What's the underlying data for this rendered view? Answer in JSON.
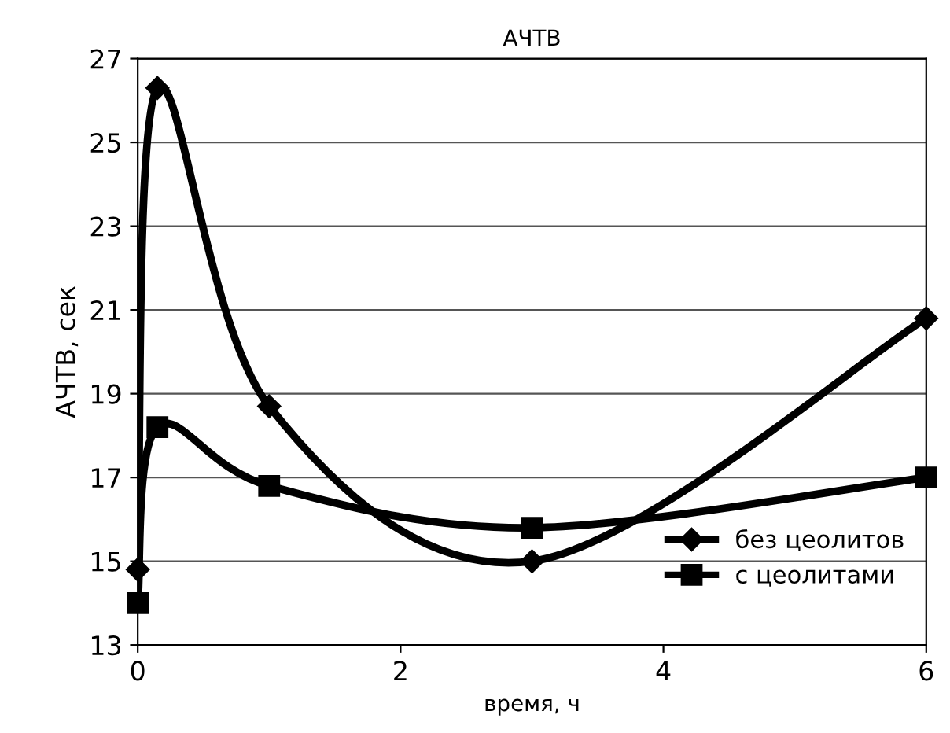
{
  "chart_data": {
    "type": "line",
    "title": "АЧТВ",
    "xlabel": "время, ч",
    "ylabel": "АЧТВ, сек",
    "xlim": [
      0,
      6
    ],
    "xticks": [
      0,
      2,
      4,
      6
    ],
    "ylim": [
      13,
      27
    ],
    "yticks": [
      13,
      15,
      17,
      19,
      21,
      23,
      25,
      27
    ],
    "grid": "y",
    "legend": "bottom right",
    "line_style": "solid",
    "series": [
      {
        "name": "без цеолитов",
        "color": "#000000",
        "marker": "diamond",
        "x": [
          0,
          0.15,
          1,
          3,
          6
        ],
        "values": [
          14.8,
          26.3,
          18.7,
          15.0,
          20.8
        ]
      },
      {
        "name": "с цеолитами",
        "color": "#000000",
        "marker": "square",
        "x": [
          0,
          0.15,
          1,
          3,
          6
        ],
        "values": [
          14.0,
          18.2,
          16.8,
          15.8,
          17.0
        ]
      }
    ]
  }
}
